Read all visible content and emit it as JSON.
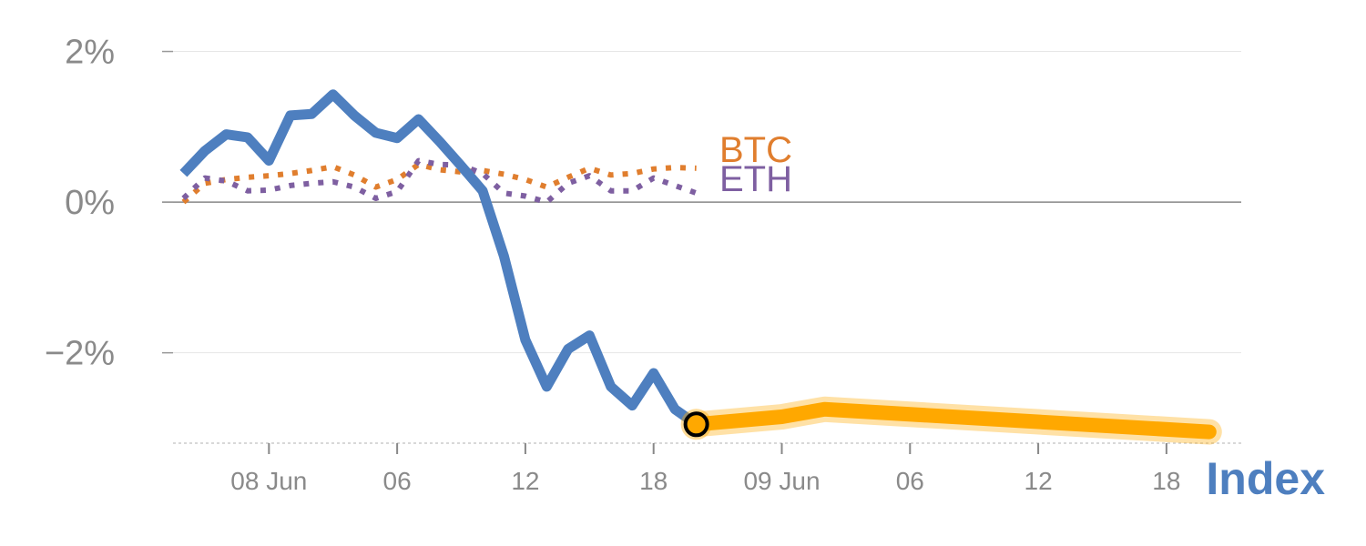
{
  "chart_data": {
    "type": "line",
    "title": "",
    "xlabel": "",
    "ylabel": "",
    "ylim": [
      -3.2,
      2.2
    ],
    "y_ticks": [
      {
        "value": 2,
        "label": "2%"
      },
      {
        "value": 0,
        "label": "0%"
      },
      {
        "value": -2,
        "label": "−2%"
      }
    ],
    "x_ticks": [
      {
        "x": 4,
        "label": "08 Jun"
      },
      {
        "x": 10,
        "label": "06"
      },
      {
        "x": 16,
        "label": "12"
      },
      {
        "x": 22,
        "label": "18"
      },
      {
        "x": 28,
        "label": "09 Jun"
      },
      {
        "x": 34,
        "label": "06"
      },
      {
        "x": 40,
        "label": "12"
      },
      {
        "x": 46,
        "label": "18"
      }
    ],
    "xlim": [
      -1,
      49.5
    ],
    "series": [
      {
        "name": "Index",
        "role": "main",
        "color": "#4e7fbf",
        "x": [
          0,
          1,
          2,
          3,
          4,
          5,
          6,
          7,
          8,
          9,
          10,
          11,
          12,
          13,
          14,
          15,
          16,
          17,
          18,
          19,
          20,
          21,
          22,
          23,
          24
        ],
        "y": [
          0.38,
          0.68,
          0.9,
          0.86,
          0.55,
          1.15,
          1.17,
          1.43,
          1.15,
          0.92,
          0.85,
          1.1,
          0.8,
          0.48,
          0.15,
          -0.72,
          -1.83,
          -2.45,
          -1.95,
          -1.77,
          -2.45,
          -2.7,
          -2.27,
          -2.75,
          -2.95
        ]
      },
      {
        "name": "BTC",
        "role": "comparison",
        "color": "#e07e2e",
        "x": [
          0,
          1,
          2,
          3,
          4,
          5,
          6,
          7,
          8,
          9,
          10,
          11,
          12,
          13,
          14,
          15,
          16,
          17,
          18,
          19,
          20,
          21,
          22,
          23,
          24
        ],
        "y": [
          0.0,
          0.25,
          0.3,
          0.33,
          0.35,
          0.38,
          0.42,
          0.47,
          0.36,
          0.2,
          0.3,
          0.5,
          0.43,
          0.4,
          0.42,
          0.37,
          0.3,
          0.2,
          0.33,
          0.45,
          0.36,
          0.38,
          0.44,
          0.46,
          0.45
        ]
      },
      {
        "name": "ETH",
        "role": "comparison",
        "color": "#7e5fa1",
        "x": [
          0,
          1,
          2,
          3,
          4,
          5,
          6,
          7,
          8,
          9,
          10,
          11,
          12,
          13,
          14,
          15,
          16,
          17,
          18,
          19,
          20,
          21,
          22,
          23,
          24
        ],
        "y": [
          0.05,
          0.32,
          0.28,
          0.15,
          0.16,
          0.22,
          0.25,
          0.27,
          0.2,
          0.05,
          0.14,
          0.55,
          0.5,
          0.49,
          0.38,
          0.12,
          0.08,
          0.0,
          0.25,
          0.35,
          0.15,
          0.15,
          0.32,
          0.22,
          0.12
        ]
      },
      {
        "name": "",
        "role": "forecast",
        "color": "#ffa800",
        "x": [
          24,
          28,
          30,
          48
        ],
        "y": [
          -2.95,
          -2.85,
          -2.75,
          -3.05
        ]
      }
    ],
    "marker": {
      "x": 24,
      "y": -2.95,
      "fill": "#ffa800",
      "stroke": "#000000"
    },
    "grid": true,
    "legend": "inline-labels",
    "index_label": "Index",
    "btc_label": "BTC",
    "eth_label": "ETH",
    "colors": {
      "grid": "#e6e6e6",
      "zero_line": "#888888",
      "ticks": "#8a8a8a",
      "baseline": "#cccccc"
    }
  }
}
